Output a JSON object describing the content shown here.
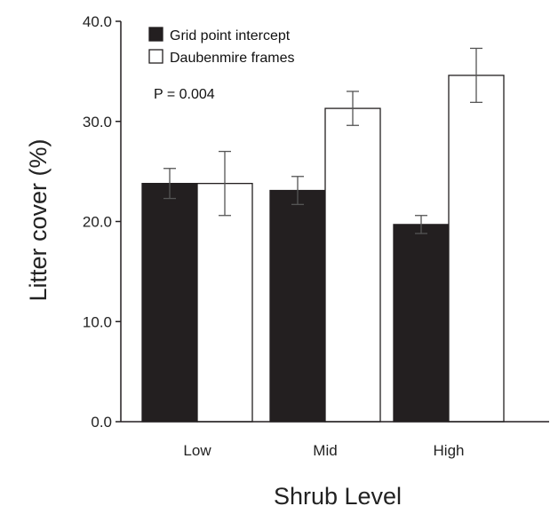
{
  "chart_data": {
    "type": "bar",
    "categories": [
      "Low",
      "Mid",
      "High"
    ],
    "series": [
      {
        "name": "Grid point intercept",
        "values": [
          23.8,
          23.1,
          19.7
        ],
        "errors": [
          1.5,
          1.4,
          0.9
        ],
        "color": "#231f20"
      },
      {
        "name": "Daubenmire frames",
        "values": [
          23.8,
          31.3,
          34.6
        ],
        "errors": [
          3.2,
          1.7,
          2.7
        ],
        "color": "#ffffff"
      }
    ],
    "xlabel": "Shrub Level",
    "ylabel": "Litter cover (%)",
    "ylim": [
      0,
      40
    ],
    "yticks": [
      "0.0",
      "10.0",
      "20.0",
      "30.0",
      "40.0"
    ],
    "annotation": "P = 0.004",
    "legend_position": "top-left",
    "grid": false
  }
}
